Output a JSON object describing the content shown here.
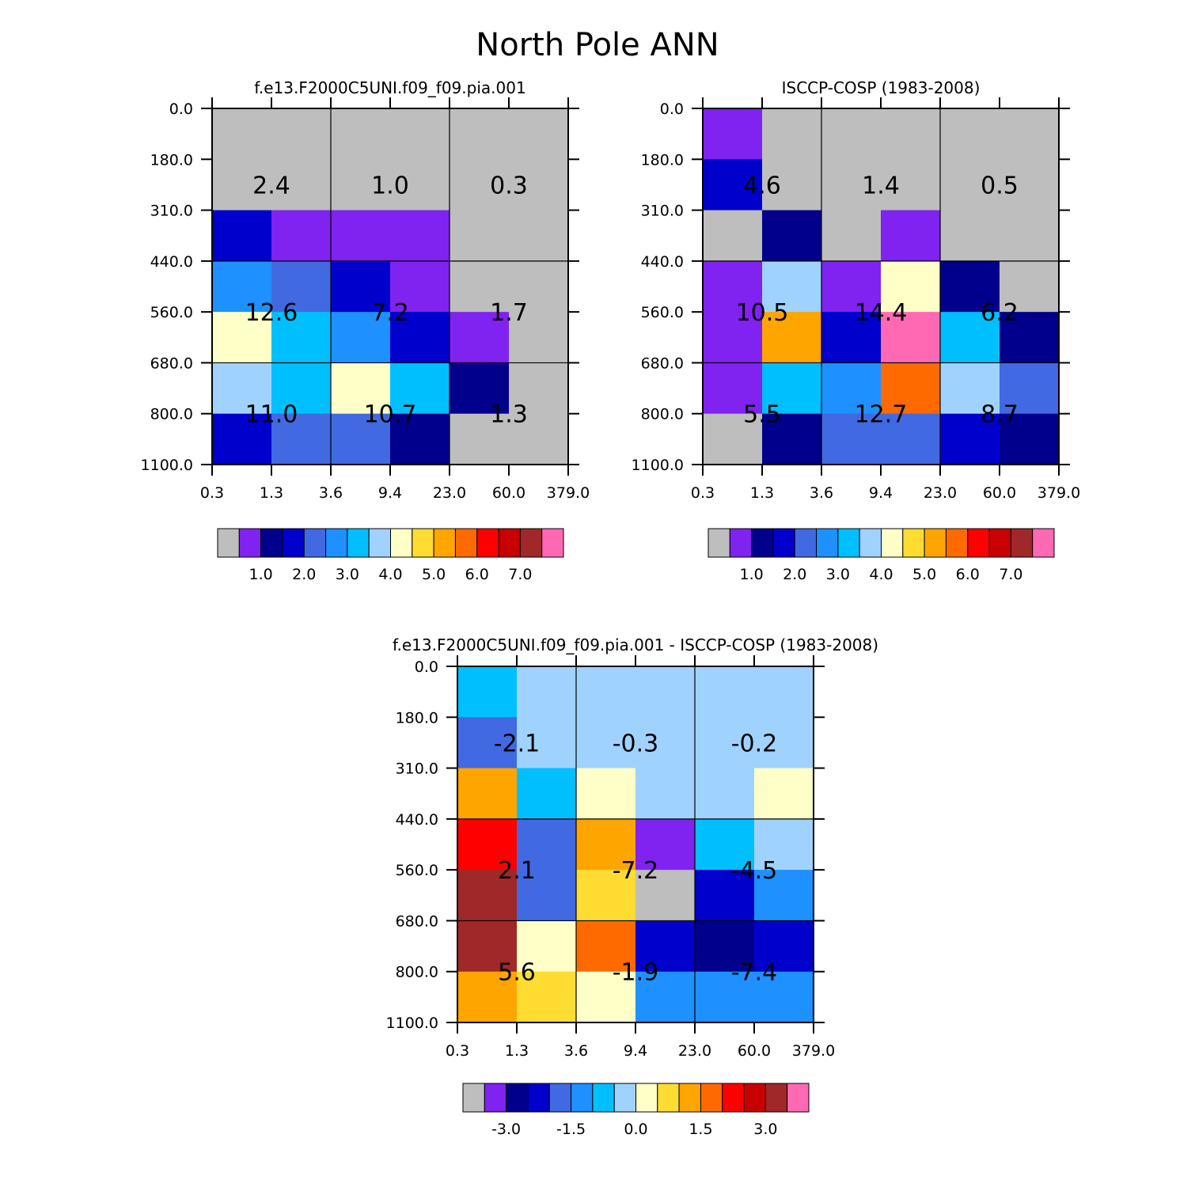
{
  "page": {
    "title": "North Pole ANN"
  },
  "colormaps": {
    "abs": [
      "#bebebe",
      "#8022f0",
      "#00008c",
      "#0000cd",
      "#4169e1",
      "#1e90ff",
      "#00bfff",
      "#a0d2ff",
      "#ffffc8",
      "#ffdc32",
      "#ffa500",
      "#ff6a00",
      "#ff0000",
      "#c80000",
      "#a02828",
      "#ff69b4"
    ],
    "diff": [
      "#bebebe",
      "#8022f0",
      "#00008c",
      "#0000cd",
      "#4169e1",
      "#1e90ff",
      "#00bfff",
      "#a0d2ff",
      "#ffffc8",
      "#ffdc32",
      "#ffa500",
      "#ff6a00",
      "#ff0000",
      "#c80000",
      "#a02828",
      "#ff69b4"
    ]
  },
  "chart_data": [
    {
      "type": "heatmap",
      "title": "f.e13.F2000C5UNI.f09_f09.pia.001",
      "xticks": [
        "0.3",
        "1.3",
        "3.6",
        "9.4",
        "23.0",
        "60.0",
        "379.0"
      ],
      "yticks": [
        "0.0",
        "180.0",
        "310.0",
        "440.0",
        "560.0",
        "680.0",
        "800.0",
        "1100.0"
      ],
      "cell_color_index": [
        [
          0,
          0,
          0,
          0,
          0,
          0
        ],
        [
          0,
          0,
          0,
          0,
          0,
          0
        ],
        [
          3,
          1,
          1,
          1,
          0,
          0
        ],
        [
          5,
          4,
          3,
          1,
          0,
          0
        ],
        [
          8,
          6,
          5,
          3,
          1,
          0
        ],
        [
          7,
          6,
          8,
          6,
          2,
          0
        ],
        [
          3,
          4,
          4,
          2,
          0,
          0
        ]
      ],
      "block_sums": [
        [
          "2.4",
          "1.0",
          "0.3"
        ],
        [
          "12.6",
          "7.2",
          "1.7"
        ],
        [
          "11.0",
          "10.7",
          "1.3"
        ]
      ],
      "colorbar_ticks": [
        "1.0",
        "2.0",
        "3.0",
        "4.0",
        "5.0",
        "6.0",
        "7.0"
      ],
      "colormap": "abs"
    },
    {
      "type": "heatmap",
      "title": "ISCCP-COSP (1983-2008)",
      "xticks": [
        "0.3",
        "1.3",
        "3.6",
        "9.4",
        "23.0",
        "60.0",
        "379.0"
      ],
      "yticks": [
        "0.0",
        "180.0",
        "310.0",
        "440.0",
        "560.0",
        "680.0",
        "800.0",
        "1100.0"
      ],
      "cell_color_index": [
        [
          1,
          0,
          0,
          0,
          0,
          0
        ],
        [
          3,
          0,
          0,
          0,
          0,
          0
        ],
        [
          0,
          2,
          0,
          1,
          0,
          0
        ],
        [
          1,
          7,
          1,
          8,
          2,
          0
        ],
        [
          1,
          10,
          3,
          15,
          6,
          2
        ],
        [
          1,
          6,
          5,
          11,
          7,
          4
        ],
        [
          0,
          2,
          4,
          4,
          3,
          2
        ]
      ],
      "block_sums": [
        [
          "4.6",
          "1.4",
          "0.5"
        ],
        [
          "10.5",
          "14.4",
          "6.2"
        ],
        [
          "5.5",
          "12.7",
          "8.7"
        ]
      ],
      "colorbar_ticks": [
        "1.0",
        "2.0",
        "3.0",
        "4.0",
        "5.0",
        "6.0",
        "7.0"
      ],
      "colormap": "abs"
    },
    {
      "type": "heatmap",
      "title": "f.e13.F2000C5UNI.f09_f09.pia.001 - ISCCP-COSP (1983-2008)",
      "xticks": [
        "0.3",
        "1.3",
        "3.6",
        "9.4",
        "23.0",
        "60.0",
        "379.0"
      ],
      "yticks": [
        "0.0",
        "180.0",
        "310.0",
        "440.0",
        "560.0",
        "680.0",
        "800.0",
        "1100.0"
      ],
      "cell_color_index": [
        [
          6,
          7,
          7,
          7,
          7,
          7
        ],
        [
          4,
          7,
          7,
          7,
          7,
          7
        ],
        [
          10,
          6,
          8,
          7,
          7,
          8
        ],
        [
          12,
          4,
          10,
          1,
          6,
          7
        ],
        [
          14,
          4,
          9,
          0,
          3,
          5
        ],
        [
          14,
          8,
          11,
          3,
          2,
          3
        ],
        [
          10,
          9,
          8,
          5,
          5,
          5
        ]
      ],
      "block_sums": [
        [
          "-2.1",
          "-0.3",
          "-0.2"
        ],
        [
          "2.1",
          "-7.2",
          "-4.5"
        ],
        [
          "5.6",
          "-1.9",
          "-7.4"
        ]
      ],
      "colorbar_ticks": [
        "-3.0",
        "-1.5",
        "0.0",
        "1.5",
        "3.0"
      ],
      "colormap": "diff"
    }
  ]
}
